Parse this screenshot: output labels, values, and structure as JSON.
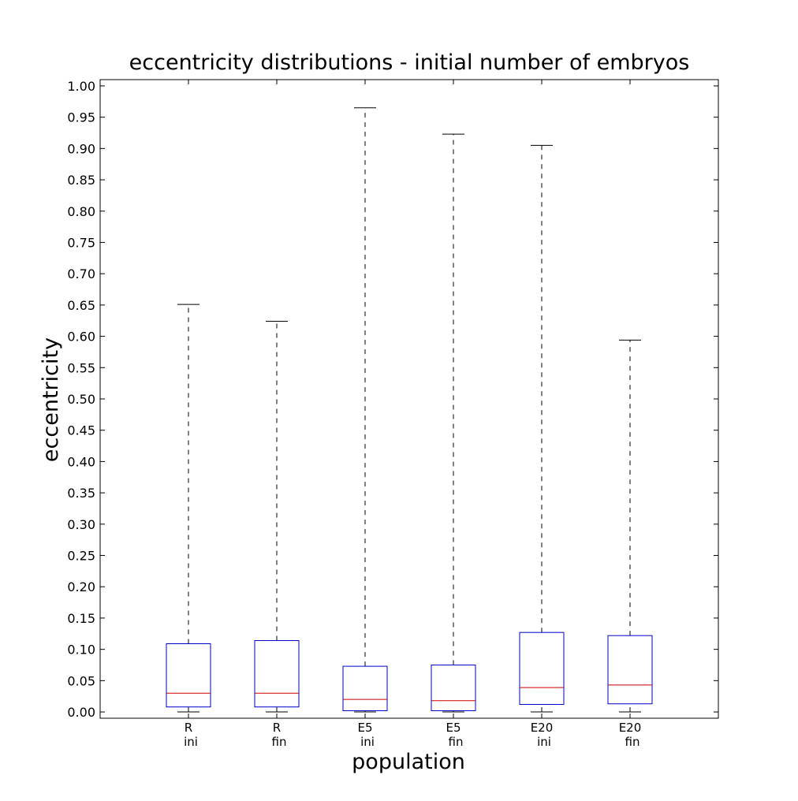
{
  "chart_data": {
    "type": "box",
    "title": "eccentricity distributions - initial number of embryos",
    "xlabel": "population",
    "ylabel": "eccentricity",
    "ylim": [
      -0.01,
      1.01
    ],
    "yticks": [
      0.0,
      0.05,
      0.1,
      0.15,
      0.2,
      0.25,
      0.3,
      0.35,
      0.4,
      0.45,
      0.5,
      0.55,
      0.6,
      0.65,
      0.7,
      0.75,
      0.8,
      0.85,
      0.9,
      0.95,
      1.0
    ],
    "ytick_labels": [
      "0.00",
      "0.05",
      "0.10",
      "0.15",
      "0.20",
      "0.25",
      "0.30",
      "0.35",
      "0.40",
      "0.45",
      "0.50",
      "0.55",
      "0.60",
      "0.65",
      "0.70",
      "0.75",
      "0.80",
      "0.85",
      "0.90",
      "0.95",
      "1.00"
    ],
    "grid": false,
    "colors": {
      "box": "#0000cc",
      "median": "#cc0000",
      "whisker": "#000000"
    },
    "categories": [
      {
        "line1": "R",
        "line2": "ini"
      },
      {
        "line1": "R",
        "line2": "fin"
      },
      {
        "line1": "E5",
        "line2": "ini"
      },
      {
        "line1": "E5",
        "line2": "fin"
      },
      {
        "line1": "E20",
        "line2": "ini"
      },
      {
        "line1": "E20",
        "line2": "fin"
      }
    ],
    "boxes": [
      {
        "min": 0.0,
        "q1": 0.008,
        "median": 0.03,
        "q3": 0.109,
        "max": 0.651
      },
      {
        "min": 0.0,
        "q1": 0.008,
        "median": 0.03,
        "q3": 0.114,
        "max": 0.624
      },
      {
        "min": 0.0,
        "q1": 0.002,
        "median": 0.02,
        "q3": 0.073,
        "max": 0.965
      },
      {
        "min": 0.0,
        "q1": 0.002,
        "median": 0.018,
        "q3": 0.075,
        "max": 0.923
      },
      {
        "min": 0.0,
        "q1": 0.012,
        "median": 0.039,
        "q3": 0.127,
        "max": 0.905
      },
      {
        "min": 0.0,
        "q1": 0.013,
        "median": 0.043,
        "q3": 0.122,
        "max": 0.594
      }
    ]
  }
}
